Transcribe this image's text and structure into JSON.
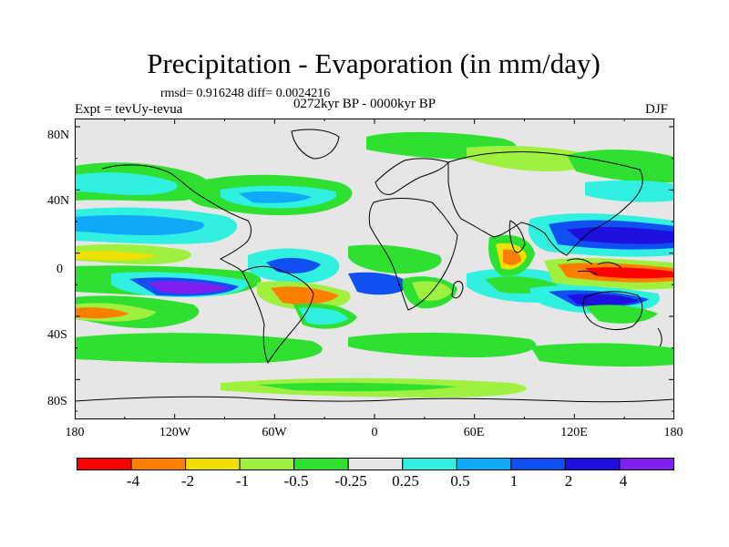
{
  "title": "Precipitation - Evaporation (in mm/day)",
  "stats": "rmsd= 0.916248 diff= 0.0024216",
  "experiment": "Expt = tevUy-tevua",
  "period": "0272kyr BP - 0000kyr BP",
  "season": "DJF",
  "latitude_labels": [
    "80N",
    "40N",
    "0",
    "40S",
    "80S"
  ],
  "longitude_labels": [
    "180",
    "120W",
    "60W",
    "0",
    "60E",
    "120E",
    "180"
  ],
  "colorbar": {
    "labels": [
      "-4",
      "-2",
      "-1",
      "-0.5",
      "-0.25",
      "0.25",
      "0.5",
      "1",
      "2",
      "4"
    ],
    "colors": [
      "#ff0000",
      "#ff8000",
      "#f0e000",
      "#a0f040",
      "#30e030",
      "#e6e6e6",
      "#30f0e0",
      "#10a8f8",
      "#1050f0",
      "#2010e0",
      "#8020f0"
    ]
  },
  "colors": {
    "land_outline": "#000000",
    "background": "#e6e6e6"
  }
}
